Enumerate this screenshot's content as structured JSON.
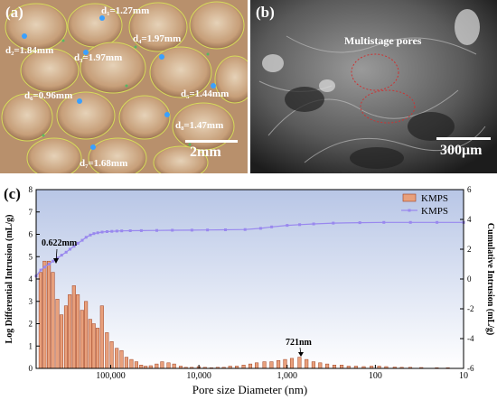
{
  "panel_a": {
    "label": "(a)",
    "annotations": [
      {
        "id": "d1",
        "text": "d₁=1.27mm"
      },
      {
        "id": "d2",
        "text": "d₂=1.84mm"
      },
      {
        "id": "d3",
        "text": "d₃=1.97mm"
      },
      {
        "id": "d4",
        "text": "d₄=1.97mm"
      },
      {
        "id": "d5",
        "text": "d₅=1.44mm"
      },
      {
        "id": "d6",
        "text": "d₆=0.96mm"
      },
      {
        "id": "d7",
        "text": "d₇=1.68mm"
      },
      {
        "id": "d8",
        "text": "d₈=1.47mm"
      }
    ],
    "scale": "2mm"
  },
  "panel_b": {
    "label": "(b)",
    "title": "Multistage pores",
    "scale": "300μm"
  },
  "panel_c": {
    "label": "(c)"
  },
  "chart_data": {
    "type": "bar",
    "xlabel": "Pore size Diameter (nm)",
    "ylabel": "Log Differential Intrusion (mL/g)",
    "y2label": "Cumulative Intrusion (mL/g)",
    "x_scale": "log, reversed",
    "xlim": [
      700000,
      10
    ],
    "ylim": [
      0,
      8
    ],
    "y2lim": [
      -6,
      6
    ],
    "x_ticks": [
      "100,000",
      "10,000",
      "1,000",
      "100",
      "10"
    ],
    "y_ticks": [
      "0",
      "1",
      "2",
      "3",
      "4",
      "5",
      "6",
      "7",
      "8"
    ],
    "y2_ticks": [
      "-6",
      "-4",
      "-2",
      "0",
      "2",
      "4",
      "6"
    ],
    "legend": [
      "KMPS",
      "KMPS"
    ],
    "legend_position": "top-right",
    "annotations": [
      "0.622mm",
      "721nm"
    ],
    "bar_series": {
      "name": "KMPS",
      "x": [
        620000,
        560000,
        500000,
        450000,
        400000,
        360000,
        320000,
        290000,
        260000,
        235000,
        210000,
        190000,
        170000,
        155000,
        140000,
        125000,
        110000,
        97000,
        85000,
        75000,
        66000,
        58000,
        51000,
        45000,
        40000,
        35000,
        30000,
        26000,
        22000,
        19000,
        16000,
        14000,
        12000,
        10000,
        8500,
        7200,
        6100,
        5200,
        4400,
        3700,
        3100,
        2600,
        2200,
        1800,
        1500,
        1250,
        1050,
        880,
        721,
        600,
        500,
        420,
        350,
        290,
        240,
        200,
        165,
        135,
        110,
        90,
        75,
        60,
        50,
        40,
        30,
        20,
        15
      ],
      "values": [
        4.3,
        4.8,
        4.8,
        4.3,
        3.1,
        2.4,
        2.8,
        3.3,
        3.7,
        3.3,
        2.6,
        3.0,
        2.2,
        2.0,
        1.8,
        2.8,
        1.6,
        1.2,
        0.9,
        0.8,
        0.5,
        0.4,
        0.3,
        0.15,
        0.1,
        0.12,
        0.2,
        0.3,
        0.25,
        0.2,
        0.1,
        0.05,
        0.05,
        0.08,
        0.05,
        0.03,
        0.05,
        0.05,
        0.1,
        0.1,
        0.15,
        0.2,
        0.25,
        0.3,
        0.3,
        0.35,
        0.4,
        0.45,
        0.5,
        0.4,
        0.3,
        0.25,
        0.2,
        0.15,
        0.15,
        0.1,
        0.1,
        0.08,
        0.1,
        0.1,
        0.08,
        0.06,
        0.05,
        0.05,
        0.04,
        0.03,
        0.03
      ]
    },
    "line_series": {
      "name": "KMPS",
      "x": [
        700000,
        620000,
        560000,
        500000,
        450000,
        400000,
        360000,
        320000,
        290000,
        260000,
        235000,
        210000,
        190000,
        170000,
        155000,
        140000,
        125000,
        110000,
        97000,
        85000,
        75000,
        60000,
        45000,
        30000,
        20000,
        12000,
        8000,
        5000,
        3000,
        2000,
        1500,
        1000,
        721,
        500,
        300,
        150,
        80,
        40,
        20,
        10
      ],
      "values": [
        0.2,
        0.6,
        0.8,
        1.0,
        1.2,
        1.4,
        1.6,
        1.8,
        2.0,
        2.2,
        2.4,
        2.6,
        2.8,
        2.95,
        3.05,
        3.1,
        3.15,
        3.18,
        3.2,
        3.22,
        3.23,
        3.24,
        3.25,
        3.26,
        3.27,
        3.28,
        3.29,
        3.3,
        3.32,
        3.4,
        3.5,
        3.6,
        3.65,
        3.7,
        3.75,
        3.78,
        3.8,
        3.8,
        3.8,
        3.8
      ]
    },
    "colors": {
      "bar_fill": "#e8a07c",
      "bar_stroke": "#a04020",
      "line": "#9988ee",
      "plot_bg_top": "#b8c6e6",
      "plot_bg_bottom": "#ffffff"
    }
  }
}
